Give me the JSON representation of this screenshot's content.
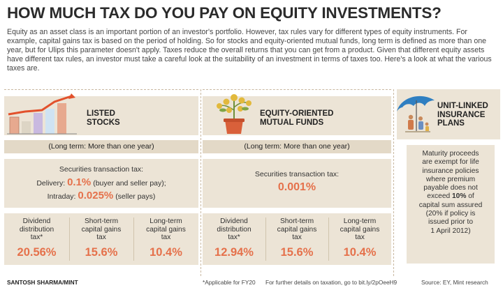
{
  "title": "HOW MUCH TAX DO YOU PAY ON EQUITY INVESTMENTS?",
  "intro": "Equity as an asset class is an important portion of an investor's portfolio. However, tax rules vary for different types of equity instruments. For example, capital gains tax is based on the period of holding. So for stocks and equity-oriented mutual funds, long term is defined as more than one year, but for Ulips this parameter doesn't apply. Taxes reduce the overall returns that you can get from a product. Given that different equity assets have different tax rules, an investor must take a careful look at the suitability of an investment in terms of taxes too. Here's a look at what the various taxes are.",
  "stocks": {
    "label_line1": "LISTED",
    "label_line2": "STOCKS",
    "long_term": "(Long term: More than one year)",
    "stt_label": "Securities transaction tax:",
    "delivery_label": "Delivery:",
    "delivery_value": "0.1%",
    "delivery_note": "(buyer and seller pay);",
    "intraday_label": "Intraday:",
    "intraday_value": "0.025%",
    "intraday_note": "(seller pays)",
    "dividend_label_1": "Dividend",
    "dividend_label_2": "distribution",
    "dividend_label_3": "tax*",
    "dividend_value": "20.56%",
    "stcg_label_1": "Short-term",
    "stcg_label_2": "capital gains",
    "stcg_label_3": "tax",
    "stcg_value": "15.6%",
    "ltcg_label_1": "Long-term",
    "ltcg_label_2": "capital gains",
    "ltcg_label_3": "tax",
    "ltcg_value": "10.4%"
  },
  "mutual_funds": {
    "label_line1": "EQUITY-ORIENTED",
    "label_line2": "MUTUAL FUNDS",
    "long_term": "(Long term: More than one year)",
    "stt_label": "Securities transaction tax:",
    "stt_value": "0.001%",
    "dividend_label_1": "Dividend",
    "dividend_label_2": "distribution",
    "dividend_label_3": "tax*",
    "dividend_value": "12.94%",
    "stcg_label_1": "Short-term",
    "stcg_label_2": "capital gains",
    "stcg_label_3": "tax",
    "stcg_value": "15.6%",
    "ltcg_label_1": "Long-term",
    "ltcg_label_2": "capital gains",
    "ltcg_label_3": "tax",
    "ltcg_value": "10.4%"
  },
  "ulip": {
    "label_line1": "UNIT-LINKED",
    "label_line2": "INSURANCE",
    "label_line3": "PLANS",
    "text_lines": [
      "Maturity proceeds",
      "are exempt for life",
      "insurance policies",
      "where premium",
      "payable does not"
    ],
    "exceed_prefix": "exceed ",
    "exceed_value": "10%",
    "exceed_suffix": " of",
    "text_lines_2": [
      "capital sum assured",
      "(20% if policy is",
      "issued prior to",
      "1 April 2012)"
    ]
  },
  "footer": {
    "credit": "SANTOSH SHARMA/MINT",
    "note": "*Applicable for FY20",
    "details": "For further details on taxation, go to bit.ly/2pOeeH9",
    "source": "Source: EY, Mint research"
  },
  "colors": {
    "panel": "#ece4d6",
    "accent_orange": "#e5714b",
    "umbrella_blue": "#2f7fc1",
    "dashed_rule": "#c9b8a0"
  }
}
